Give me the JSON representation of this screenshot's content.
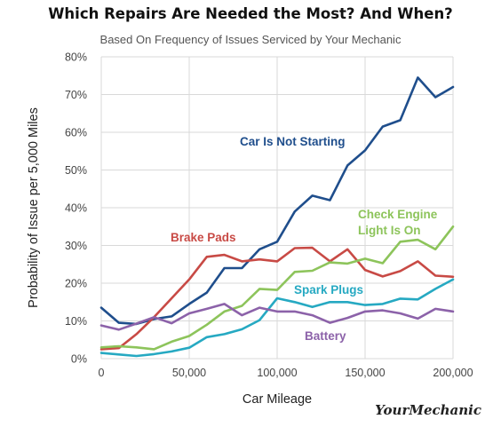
{
  "chart_data": {
    "type": "line",
    "title": "Which Repairs Are Needed the Most? And When?",
    "subtitle": "Based On Frequency of Issues Serviced by Your Mechanic",
    "xlabel": "Car Mileage",
    "ylabel": "Probability of Issue per 5,000 Miles",
    "xlim": [
      0,
      200000
    ],
    "ylim": [
      0,
      80
    ],
    "x_ticks": [
      0,
      50000,
      100000,
      150000,
      200000
    ],
    "x_tick_labels": [
      "0",
      "50,000",
      "100,000",
      "150,000",
      "200,000"
    ],
    "y_ticks": [
      0,
      10,
      20,
      30,
      40,
      50,
      60,
      70,
      80
    ],
    "y_tick_labels": [
      "0%",
      "10%",
      "20%",
      "30%",
      "40%",
      "50%",
      "60%",
      "70%",
      "80%"
    ],
    "grid": true,
    "x": [
      0,
      10000,
      20000,
      30000,
      40000,
      50000,
      60000,
      70000,
      80000,
      90000,
      100000,
      110000,
      120000,
      130000,
      140000,
      150000,
      160000,
      170000,
      180000,
      190000,
      200000
    ],
    "series": [
      {
        "name": "Car Is Not Starting",
        "color": "#1f4e8c",
        "values": [
          13.5,
          9.5,
          9.2,
          10.5,
          11.2,
          14.5,
          17.5,
          24,
          24,
          29,
          31,
          39,
          43.2,
          42,
          51.2,
          55.2,
          61.5,
          63.2,
          74.5,
          69.3,
          72
        ]
      },
      {
        "name": "Brake Pads",
        "color": "#c84a45",
        "values": [
          2.5,
          2.8,
          6.5,
          11,
          16,
          21,
          27,
          27.5,
          25.8,
          26.3,
          25.8,
          29.3,
          29.4,
          25.8,
          29,
          23.5,
          21.8,
          23.2,
          25.8,
          22,
          21.7
        ]
      },
      {
        "name": "Check Engine\nLight Is On",
        "color": "#8dc45b",
        "values": [
          3,
          3.3,
          3,
          2.5,
          4.5,
          6,
          9,
          12.5,
          14,
          18.5,
          18.2,
          23,
          23.3,
          25.5,
          25.2,
          26.5,
          25.3,
          31,
          31.5,
          29,
          35
        ]
      },
      {
        "name": "Spark Plugs",
        "color": "#26a9c2",
        "values": [
          1.5,
          1.1,
          0.7,
          1.2,
          1.9,
          2.9,
          5.7,
          6.5,
          7.8,
          10.2,
          16,
          15,
          13.7,
          15,
          15,
          14.2,
          14.5,
          15.9,
          15.7,
          18.5,
          21
        ]
      },
      {
        "name": "Battery",
        "color": "#8c62a9",
        "values": [
          8.8,
          7.7,
          9.3,
          11,
          9.4,
          12,
          13.2,
          14.5,
          11.5,
          13.5,
          12.5,
          12.5,
          11.5,
          9.5,
          10.8,
          12.5,
          12.8,
          12,
          10.6,
          13.2,
          12.5
        ]
      }
    ],
    "brand": "YourMechanic"
  }
}
